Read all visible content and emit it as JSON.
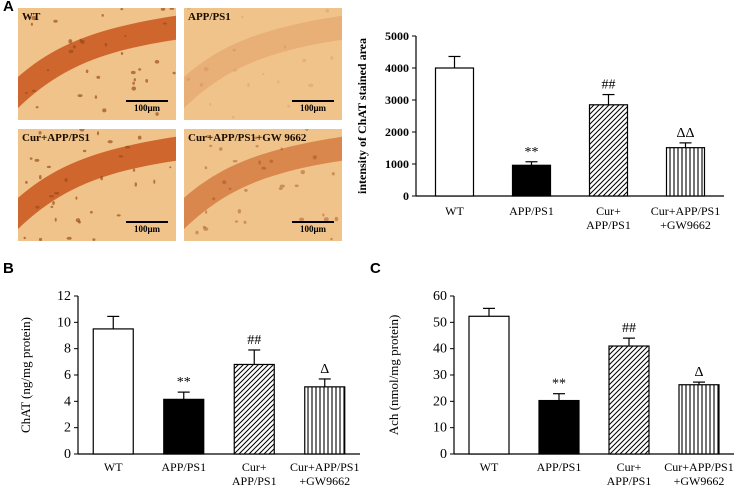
{
  "panels": {
    "a": "A",
    "b": "B",
    "c": "C"
  },
  "micrographs": [
    {
      "label": "WT",
      "scale": "100μm",
      "intensity": "high"
    },
    {
      "label": "APP/PS1",
      "scale": "100μm",
      "intensity": "low"
    },
    {
      "label": "Cur+APP/PS1",
      "scale": "100μm",
      "intensity": "high"
    },
    {
      "label": "Cur+APP/PS1+GW 9662",
      "scale": "100μm",
      "intensity": "medium"
    }
  ],
  "colors": {
    "tissue": "#efc38a",
    "stain": "#c8561c",
    "bar_fill_white": "#ffffff",
    "bar_fill_black": "#000000"
  },
  "chart_data": [
    {
      "id": "A",
      "type": "bar",
      "categories": [
        [
          "WT"
        ],
        [
          "APP/PS1"
        ],
        [
          "Cur+",
          "APP/PS1"
        ],
        [
          "Cur+APP/PS1",
          "+GW9662"
        ]
      ],
      "values": [
        4000,
        960,
        2850,
        1510
      ],
      "errors": [
        360,
        110,
        320,
        150
      ],
      "fills": [
        "white",
        "black",
        "diagonal",
        "vertical"
      ],
      "annotations": [
        "",
        "**",
        "##",
        "ΔΔ"
      ],
      "ylabel": "intensity of ChAT stained area",
      "ylim": [
        0,
        5000
      ],
      "yticks": [
        0,
        1000,
        2000,
        3000,
        4000,
        5000
      ],
      "grid": false
    },
    {
      "id": "B",
      "type": "bar",
      "categories": [
        [
          "WT"
        ],
        [
          "APP/PS1"
        ],
        [
          "Cur+",
          "APP/PS1"
        ],
        [
          "Cur+APP/PS1",
          "+GW9662"
        ]
      ],
      "values": [
        9.5,
        4.15,
        6.8,
        5.1
      ],
      "errors": [
        0.95,
        0.55,
        1.1,
        0.6
      ],
      "fills": [
        "white",
        "black",
        "diagonal",
        "vertical"
      ],
      "annotations": [
        "",
        "**",
        "##",
        "Δ"
      ],
      "ylabel": "ChAT (ng/mg protein)",
      "ylim": [
        0,
        12
      ],
      "yticks": [
        0,
        2,
        4,
        6,
        8,
        10,
        12
      ],
      "grid": false
    },
    {
      "id": "C",
      "type": "bar",
      "categories": [
        [
          "WT"
        ],
        [
          "APP/PS1"
        ],
        [
          "Cur+",
          "APP/PS1"
        ],
        [
          "Cur+APP/PS1",
          "+GW9662"
        ]
      ],
      "values": [
        52.3,
        20.3,
        41.0,
        26.3
      ],
      "errors": [
        3.0,
        2.6,
        3.0,
        1.0
      ],
      "fills": [
        "white",
        "black",
        "diagonal",
        "vertical"
      ],
      "annotations": [
        "",
        "**",
        "##",
        "Δ"
      ],
      "ylabel": "Ach (nmol/mg protein)",
      "ylim": [
        0,
        60
      ],
      "yticks": [
        0,
        10,
        20,
        30,
        40,
        50,
        60
      ],
      "grid": false
    }
  ]
}
